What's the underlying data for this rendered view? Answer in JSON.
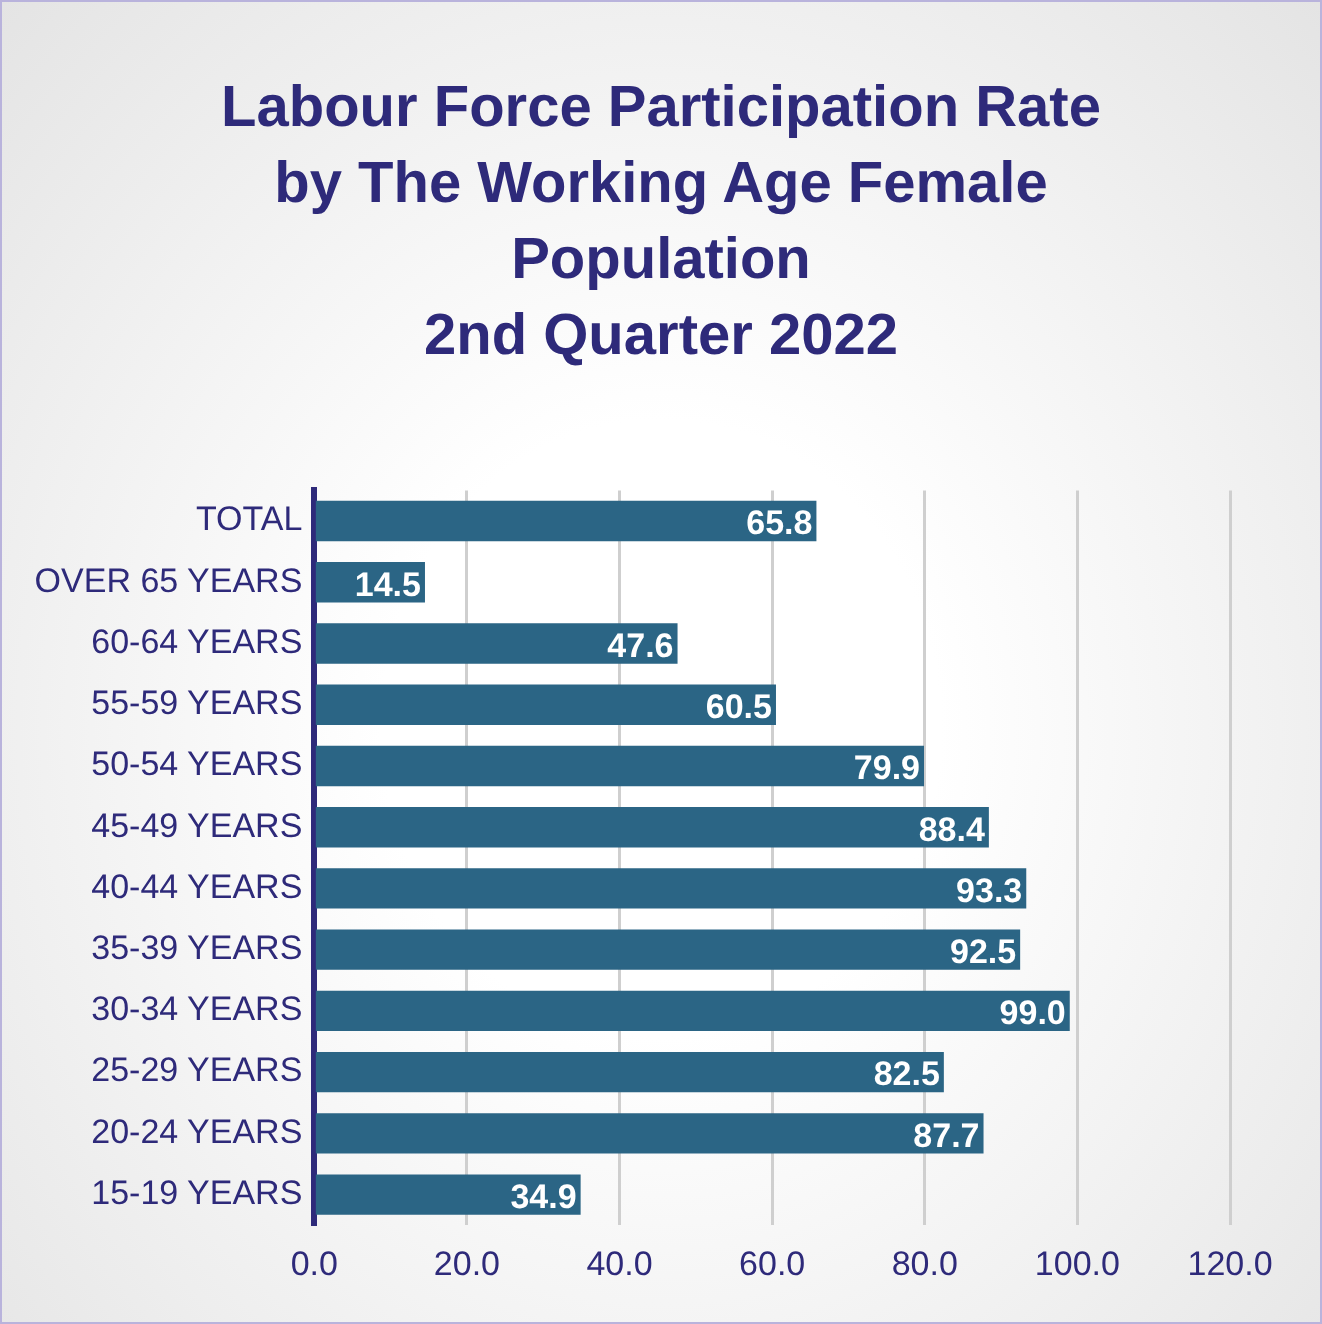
{
  "chart_data": {
    "type": "bar",
    "orientation": "horizontal",
    "title": "Labour Force Participation Rate by The Working Age Female Population",
    "subtitle": "2nd Quarter 2022",
    "categories": [
      "TOTAL",
      "OVER 65 YEARS",
      "60-64 YEARS",
      "55-59 YEARS",
      "50-54 YEARS",
      "45-49 YEARS",
      "40-44 YEARS",
      "35-39 YEARS",
      "30-34 YEARS",
      "25-29 YEARS",
      "20-24 YEARS",
      "15-19 YEARS"
    ],
    "values": [
      65.8,
      14.5,
      47.6,
      60.5,
      79.9,
      88.4,
      93.3,
      92.5,
      99.0,
      82.5,
      87.7,
      34.9
    ],
    "value_labels": [
      "65.8",
      "14.5",
      "47.6",
      "60.5",
      "79.9",
      "88.4",
      "93.3",
      "92.5",
      "99.0",
      "82.5",
      "87.7",
      "34.9"
    ],
    "color": "#2b6585",
    "xlim": [
      0,
      120
    ],
    "xticks": [
      {
        "value": 0,
        "label": "0.0"
      },
      {
        "value": 20,
        "label": "20.0"
      },
      {
        "value": 40,
        "label": "40.0"
      },
      {
        "value": 60,
        "label": "60.0"
      },
      {
        "value": 80,
        "label": "80.0"
      },
      {
        "value": 100,
        "label": "100.0"
      },
      {
        "value": 120,
        "label": "120.0"
      }
    ],
    "grid": "x",
    "legend": false
  }
}
